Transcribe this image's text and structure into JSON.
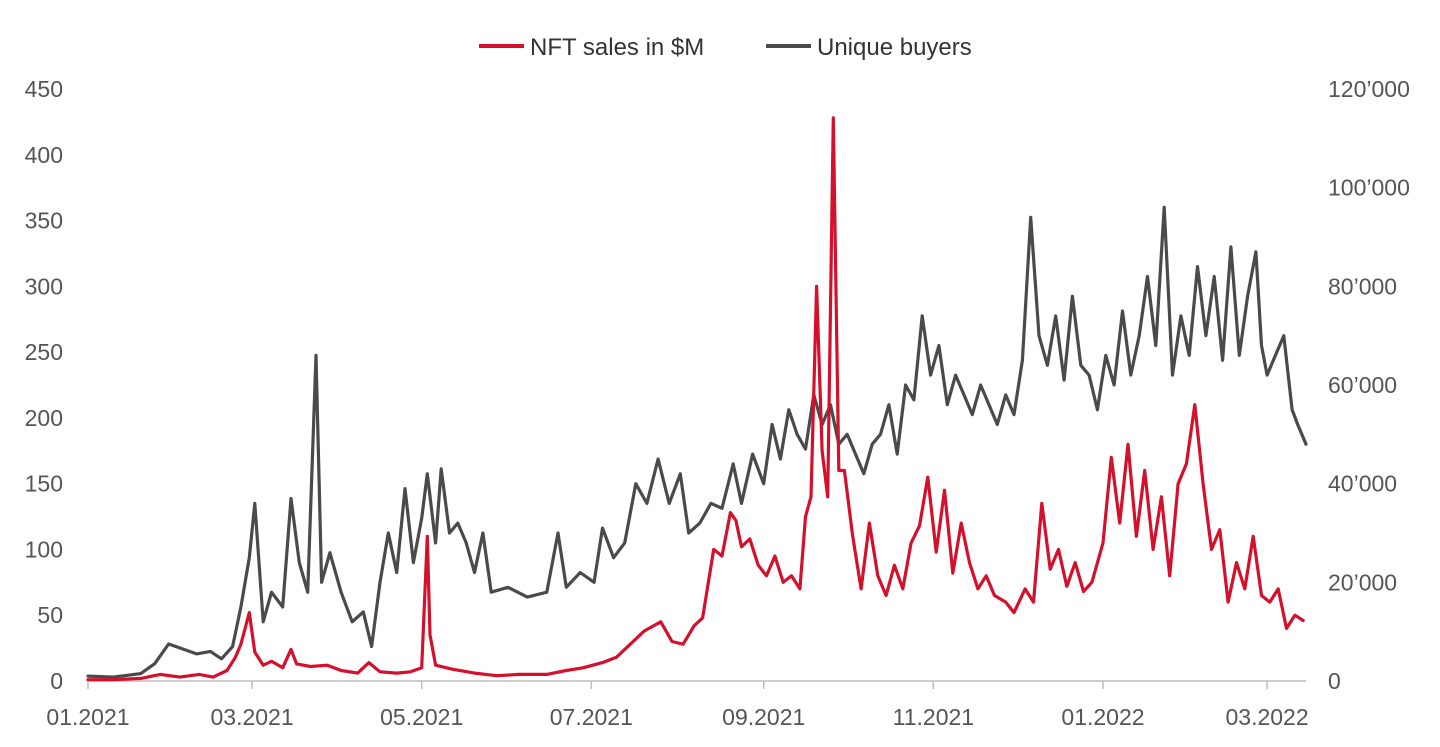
{
  "chart_data": {
    "type": "line",
    "title": "",
    "xlabel": "",
    "ylabel_left": "",
    "ylabel_right": "",
    "legend_position": "top-center",
    "x_start": "2021-01-01",
    "x_end": "2022-03-15",
    "x_tick_labels": [
      "01.2021",
      "03.2021",
      "05.2021",
      "07.2021",
      "09.2021",
      "11.2021",
      "01.2022",
      "03.2022"
    ],
    "x_tick_dates": [
      "2021-01-01",
      "2021-03-01",
      "2021-05-01",
      "2021-07-01",
      "2021-09-01",
      "2021-11-01",
      "2022-01-01",
      "2022-03-01"
    ],
    "y_left": {
      "min": 0,
      "max": 450,
      "tick_values": [
        0,
        50,
        100,
        150,
        200,
        250,
        300,
        350,
        400,
        450
      ],
      "tick_labels": [
        "0",
        "50",
        "100",
        "150",
        "200",
        "250",
        "300",
        "350",
        "400",
        "450"
      ]
    },
    "y_right": {
      "min": 0,
      "max": 120000,
      "tick_values": [
        0,
        20000,
        40000,
        60000,
        80000,
        100000,
        120000
      ],
      "tick_labels": [
        "0",
        "20’000",
        "40’000",
        "60’000",
        "80’000",
        "100’000",
        "120’000"
      ]
    },
    "series": [
      {
        "name": "NFT sales in $M",
        "axis": "left",
        "color": "#d4112c",
        "points": [
          [
            "2021-01-01",
            1
          ],
          [
            "2021-01-10",
            1
          ],
          [
            "2021-01-20",
            2
          ],
          [
            "2021-01-27",
            5
          ],
          [
            "2021-02-03",
            3
          ],
          [
            "2021-02-10",
            5
          ],
          [
            "2021-02-15",
            3
          ],
          [
            "2021-02-20",
            8
          ],
          [
            "2021-02-23",
            18
          ],
          [
            "2021-02-25",
            28
          ],
          [
            "2021-02-28",
            52
          ],
          [
            "2021-03-02",
            22
          ],
          [
            "2021-03-05",
            12
          ],
          [
            "2021-03-08",
            15
          ],
          [
            "2021-03-12",
            10
          ],
          [
            "2021-03-15",
            24
          ],
          [
            "2021-03-17",
            13
          ],
          [
            "2021-03-22",
            11
          ],
          [
            "2021-03-28",
            12
          ],
          [
            "2021-04-02",
            8
          ],
          [
            "2021-04-08",
            6
          ],
          [
            "2021-04-12",
            14
          ],
          [
            "2021-04-16",
            7
          ],
          [
            "2021-04-22",
            6
          ],
          [
            "2021-04-27",
            7
          ],
          [
            "2021-05-01",
            10
          ],
          [
            "2021-05-03",
            110
          ],
          [
            "2021-05-04",
            35
          ],
          [
            "2021-05-06",
            12
          ],
          [
            "2021-05-12",
            9
          ],
          [
            "2021-05-20",
            6
          ],
          [
            "2021-05-28",
            4
          ],
          [
            "2021-06-05",
            5
          ],
          [
            "2021-06-15",
            5
          ],
          [
            "2021-06-22",
            8
          ],
          [
            "2021-06-28",
            10
          ],
          [
            "2021-07-05",
            14
          ],
          [
            "2021-07-10",
            18
          ],
          [
            "2021-07-15",
            28
          ],
          [
            "2021-07-20",
            38
          ],
          [
            "2021-07-26",
            45
          ],
          [
            "2021-07-30",
            30
          ],
          [
            "2021-08-03",
            28
          ],
          [
            "2021-08-07",
            42
          ],
          [
            "2021-08-10",
            48
          ],
          [
            "2021-08-14",
            100
          ],
          [
            "2021-08-17",
            95
          ],
          [
            "2021-08-20",
            128
          ],
          [
            "2021-08-22",
            122
          ],
          [
            "2021-08-24",
            102
          ],
          [
            "2021-08-27",
            108
          ],
          [
            "2021-08-30",
            88
          ],
          [
            "2021-09-02",
            80
          ],
          [
            "2021-09-05",
            95
          ],
          [
            "2021-09-08",
            75
          ],
          [
            "2021-09-11",
            80
          ],
          [
            "2021-09-14",
            70
          ],
          [
            "2021-09-16",
            125
          ],
          [
            "2021-09-18",
            140
          ],
          [
            "2021-09-20",
            300
          ],
          [
            "2021-09-22",
            175
          ],
          [
            "2021-09-24",
            140
          ],
          [
            "2021-09-26",
            428
          ],
          [
            "2021-09-28",
            160
          ],
          [
            "2021-09-30",
            160
          ],
          [
            "2021-10-03",
            110
          ],
          [
            "2021-10-06",
            70
          ],
          [
            "2021-10-09",
            120
          ],
          [
            "2021-10-12",
            80
          ],
          [
            "2021-10-15",
            65
          ],
          [
            "2021-10-18",
            88
          ],
          [
            "2021-10-21",
            70
          ],
          [
            "2021-10-24",
            105
          ],
          [
            "2021-10-27",
            118
          ],
          [
            "2021-10-30",
            155
          ],
          [
            "2021-11-02",
            98
          ],
          [
            "2021-11-05",
            145
          ],
          [
            "2021-11-08",
            82
          ],
          [
            "2021-11-11",
            120
          ],
          [
            "2021-11-14",
            90
          ],
          [
            "2021-11-17",
            70
          ],
          [
            "2021-11-20",
            80
          ],
          [
            "2021-11-23",
            65
          ],
          [
            "2021-11-27",
            60
          ],
          [
            "2021-11-30",
            52
          ],
          [
            "2021-12-04",
            70
          ],
          [
            "2021-12-07",
            60
          ],
          [
            "2021-12-10",
            135
          ],
          [
            "2021-12-13",
            85
          ],
          [
            "2021-12-16",
            100
          ],
          [
            "2021-12-19",
            72
          ],
          [
            "2021-12-22",
            90
          ],
          [
            "2021-12-25",
            68
          ],
          [
            "2021-12-28",
            75
          ],
          [
            "2022-01-01",
            105
          ],
          [
            "2022-01-04",
            170
          ],
          [
            "2022-01-07",
            120
          ],
          [
            "2022-01-10",
            180
          ],
          [
            "2022-01-13",
            110
          ],
          [
            "2022-01-16",
            160
          ],
          [
            "2022-01-19",
            100
          ],
          [
            "2022-01-22",
            140
          ],
          [
            "2022-01-25",
            80
          ],
          [
            "2022-01-28",
            150
          ],
          [
            "2022-01-31",
            165
          ],
          [
            "2022-02-03",
            210
          ],
          [
            "2022-02-06",
            150
          ],
          [
            "2022-02-09",
            100
          ],
          [
            "2022-02-12",
            115
          ],
          [
            "2022-02-15",
            60
          ],
          [
            "2022-02-18",
            90
          ],
          [
            "2022-02-21",
            70
          ],
          [
            "2022-02-24",
            110
          ],
          [
            "2022-02-27",
            65
          ],
          [
            "2022-03-02",
            60
          ],
          [
            "2022-03-05",
            70
          ],
          [
            "2022-03-08",
            40
          ],
          [
            "2022-03-11",
            50
          ],
          [
            "2022-03-14",
            46
          ]
        ]
      },
      {
        "name": "Unique buyers",
        "axis": "right",
        "color": "#4a4a4a",
        "points": [
          [
            "2021-01-01",
            1000
          ],
          [
            "2021-01-10",
            800
          ],
          [
            "2021-01-20",
            1500
          ],
          [
            "2021-01-25",
            3500
          ],
          [
            "2021-01-30",
            7500
          ],
          [
            "2021-02-04",
            6500
          ],
          [
            "2021-02-09",
            5500
          ],
          [
            "2021-02-14",
            6000
          ],
          [
            "2021-02-18",
            4500
          ],
          [
            "2021-02-22",
            7000
          ],
          [
            "2021-02-25",
            15000
          ],
          [
            "2021-02-28",
            25000
          ],
          [
            "2021-03-02",
            36000
          ],
          [
            "2021-03-05",
            12000
          ],
          [
            "2021-03-08",
            18000
          ],
          [
            "2021-03-12",
            15000
          ],
          [
            "2021-03-15",
            37000
          ],
          [
            "2021-03-18",
            24000
          ],
          [
            "2021-03-21",
            18000
          ],
          [
            "2021-03-24",
            66000
          ],
          [
            "2021-03-26",
            20000
          ],
          [
            "2021-03-29",
            26000
          ],
          [
            "2021-04-02",
            18000
          ],
          [
            "2021-04-06",
            12000
          ],
          [
            "2021-04-10",
            14000
          ],
          [
            "2021-04-13",
            7000
          ],
          [
            "2021-04-16",
            20000
          ],
          [
            "2021-04-19",
            30000
          ],
          [
            "2021-04-22",
            22000
          ],
          [
            "2021-04-25",
            39000
          ],
          [
            "2021-04-28",
            24000
          ],
          [
            "2021-05-01",
            33000
          ],
          [
            "2021-05-03",
            42000
          ],
          [
            "2021-05-06",
            28000
          ],
          [
            "2021-05-08",
            43000
          ],
          [
            "2021-05-11",
            30000
          ],
          [
            "2021-05-14",
            32000
          ],
          [
            "2021-05-17",
            28000
          ],
          [
            "2021-05-20",
            22000
          ],
          [
            "2021-05-23",
            30000
          ],
          [
            "2021-05-26",
            18000
          ],
          [
            "2021-06-01",
            19000
          ],
          [
            "2021-06-08",
            17000
          ],
          [
            "2021-06-15",
            18000
          ],
          [
            "2021-06-19",
            30000
          ],
          [
            "2021-06-22",
            19000
          ],
          [
            "2021-06-27",
            22000
          ],
          [
            "2021-07-02",
            20000
          ],
          [
            "2021-07-05",
            31000
          ],
          [
            "2021-07-09",
            25000
          ],
          [
            "2021-07-13",
            28000
          ],
          [
            "2021-07-17",
            40000
          ],
          [
            "2021-07-21",
            36000
          ],
          [
            "2021-07-25",
            45000
          ],
          [
            "2021-07-29",
            36000
          ],
          [
            "2021-08-02",
            42000
          ],
          [
            "2021-08-05",
            30000
          ],
          [
            "2021-08-09",
            32000
          ],
          [
            "2021-08-13",
            36000
          ],
          [
            "2021-08-17",
            35000
          ],
          [
            "2021-08-21",
            44000
          ],
          [
            "2021-08-24",
            36000
          ],
          [
            "2021-08-28",
            46000
          ],
          [
            "2021-09-01",
            40000
          ],
          [
            "2021-09-04",
            52000
          ],
          [
            "2021-09-07",
            45000
          ],
          [
            "2021-09-10",
            55000
          ],
          [
            "2021-09-13",
            50000
          ],
          [
            "2021-09-16",
            47000
          ],
          [
            "2021-09-19",
            58000
          ],
          [
            "2021-09-22",
            52000
          ],
          [
            "2021-09-25",
            56000
          ],
          [
            "2021-09-28",
            48000
          ],
          [
            "2021-10-01",
            50000
          ],
          [
            "2021-10-04",
            46000
          ],
          [
            "2021-10-07",
            42000
          ],
          [
            "2021-10-10",
            48000
          ],
          [
            "2021-10-13",
            50000
          ],
          [
            "2021-10-16",
            56000
          ],
          [
            "2021-10-19",
            46000
          ],
          [
            "2021-10-22",
            60000
          ],
          [
            "2021-10-25",
            57000
          ],
          [
            "2021-10-28",
            74000
          ],
          [
            "2021-10-31",
            62000
          ],
          [
            "2021-11-03",
            68000
          ],
          [
            "2021-11-06",
            56000
          ],
          [
            "2021-11-09",
            62000
          ],
          [
            "2021-11-12",
            58000
          ],
          [
            "2021-11-15",
            54000
          ],
          [
            "2021-11-18",
            60000
          ],
          [
            "2021-11-21",
            56000
          ],
          [
            "2021-11-24",
            52000
          ],
          [
            "2021-11-27",
            58000
          ],
          [
            "2021-11-30",
            54000
          ],
          [
            "2021-12-03",
            65000
          ],
          [
            "2021-12-06",
            94000
          ],
          [
            "2021-12-09",
            70000
          ],
          [
            "2021-12-12",
            64000
          ],
          [
            "2021-12-15",
            74000
          ],
          [
            "2021-12-18",
            61000
          ],
          [
            "2021-12-21",
            78000
          ],
          [
            "2021-12-24",
            64000
          ],
          [
            "2021-12-27",
            62000
          ],
          [
            "2021-12-30",
            55000
          ],
          [
            "2022-01-02",
            66000
          ],
          [
            "2022-01-05",
            60000
          ],
          [
            "2022-01-08",
            75000
          ],
          [
            "2022-01-11",
            62000
          ],
          [
            "2022-01-14",
            70000
          ],
          [
            "2022-01-17",
            82000
          ],
          [
            "2022-01-20",
            68000
          ],
          [
            "2022-01-23",
            96000
          ],
          [
            "2022-01-26",
            62000
          ],
          [
            "2022-01-29",
            74000
          ],
          [
            "2022-02-01",
            66000
          ],
          [
            "2022-02-04",
            84000
          ],
          [
            "2022-02-07",
            70000
          ],
          [
            "2022-02-10",
            82000
          ],
          [
            "2022-02-13",
            65000
          ],
          [
            "2022-02-16",
            88000
          ],
          [
            "2022-02-19",
            66000
          ],
          [
            "2022-02-22",
            78000
          ],
          [
            "2022-02-25",
            87000
          ],
          [
            "2022-02-27",
            68000
          ],
          [
            "2022-03-01",
            62000
          ],
          [
            "2022-03-04",
            66000
          ],
          [
            "2022-03-07",
            70000
          ],
          [
            "2022-03-10",
            55000
          ],
          [
            "2022-03-12",
            52000
          ],
          [
            "2022-03-15",
            48000
          ]
        ]
      }
    ]
  },
  "legend": [
    {
      "label": "NFT sales in $M",
      "color": "#d4112c"
    },
    {
      "label": "Unique buyers",
      "color": "#4a4a4a"
    }
  ]
}
